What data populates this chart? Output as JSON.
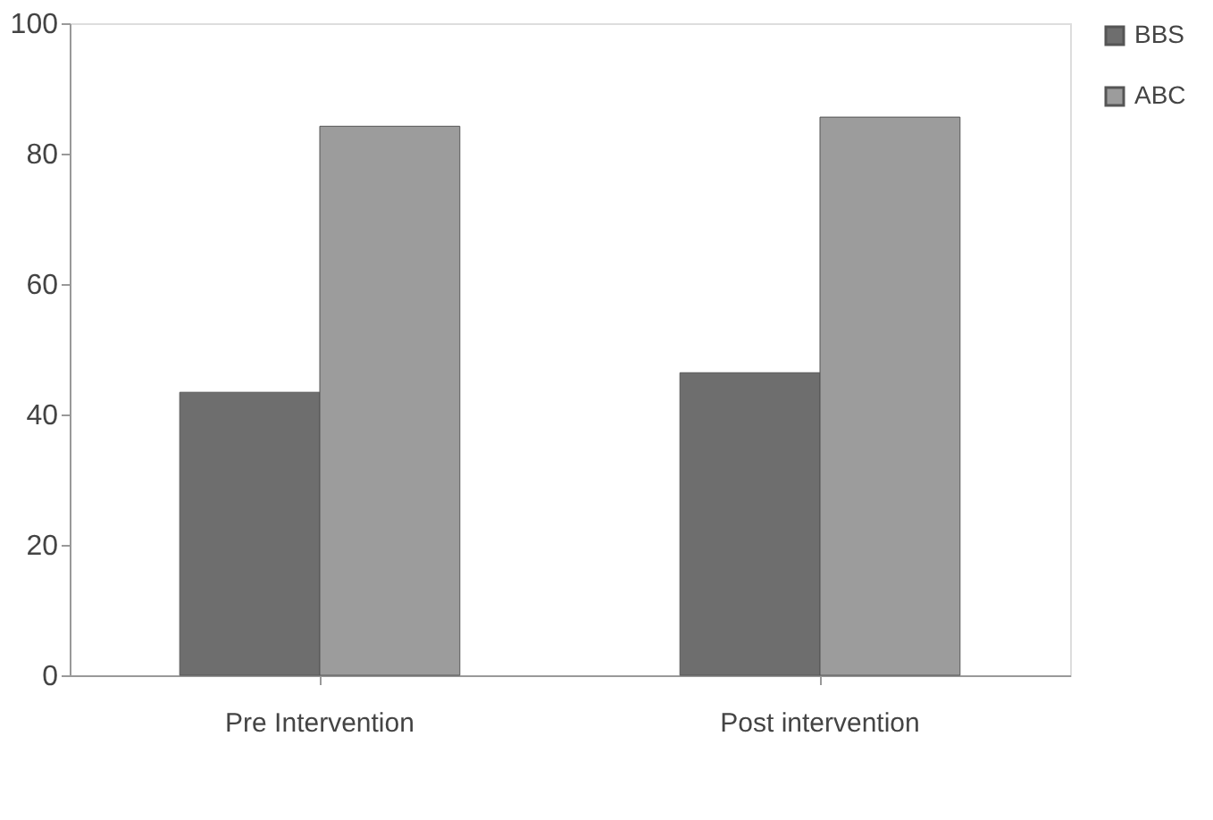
{
  "chart_data": {
    "type": "bar",
    "categories": [
      "Pre Intervention",
      "Post intervention"
    ],
    "series": [
      {
        "name": "BBS",
        "color": "#6e6e6e",
        "values": [
          43.4,
          46.4
        ]
      },
      {
        "name": "ABC",
        "color": "#9c9c9c",
        "values": [
          84.2,
          85.6
        ]
      }
    ],
    "ylim": [
      0,
      100
    ],
    "yticks": [
      0,
      20,
      40,
      60,
      80,
      100
    ],
    "grid": false,
    "legend": "right"
  }
}
